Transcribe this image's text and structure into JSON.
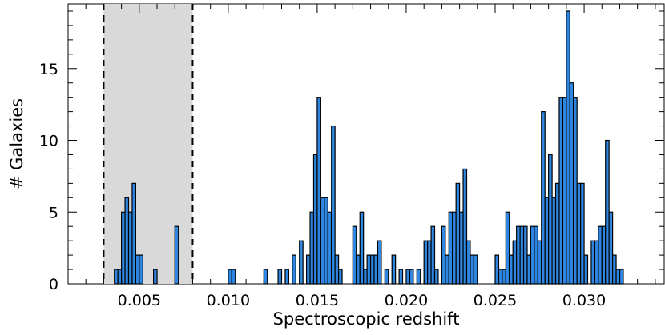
{
  "chart_data": {
    "type": "bar",
    "xlabel": "Spectroscopic redshift",
    "ylabel": "# Galaxies",
    "xlim": [
      0.0,
      0.035
    ],
    "ylim": [
      0,
      19.5
    ],
    "bin_width": 0.0002,
    "xticks": [
      0.005,
      0.01,
      0.015,
      0.02,
      0.025,
      0.03
    ],
    "xtick_labels": [
      "0.005",
      "0.010",
      "0.015",
      "0.020",
      "0.025",
      "0.030"
    ],
    "yticks": [
      0,
      5,
      10,
      15
    ],
    "ytick_labels": [
      "0",
      "5",
      "10",
      "15"
    ],
    "shaded_region": [
      0.003,
      0.008
    ],
    "colors": {
      "bar_fill": "#2f86e0",
      "bar_edge": "#000000",
      "shade": "#d9d9d9"
    },
    "bins": [
      {
        "x": 0.0037,
        "y": 1
      },
      {
        "x": 0.0039,
        "y": 1
      },
      {
        "x": 0.0041,
        "y": 5
      },
      {
        "x": 0.0043,
        "y": 6
      },
      {
        "x": 0.0045,
        "y": 5
      },
      {
        "x": 0.0047,
        "y": 7
      },
      {
        "x": 0.0049,
        "y": 2
      },
      {
        "x": 0.0051,
        "y": 2
      },
      {
        "x": 0.0059,
        "y": 1
      },
      {
        "x": 0.0071,
        "y": 4
      },
      {
        "x": 0.0101,
        "y": 1
      },
      {
        "x": 0.0103,
        "y": 1
      },
      {
        "x": 0.0121,
        "y": 1
      },
      {
        "x": 0.0129,
        "y": 1
      },
      {
        "x": 0.0133,
        "y": 1
      },
      {
        "x": 0.0137,
        "y": 2
      },
      {
        "x": 0.0141,
        "y": 3
      },
      {
        "x": 0.0145,
        "y": 2
      },
      {
        "x": 0.0147,
        "y": 5
      },
      {
        "x": 0.0149,
        "y": 9
      },
      {
        "x": 0.0151,
        "y": 13
      },
      {
        "x": 0.0153,
        "y": 6
      },
      {
        "x": 0.0155,
        "y": 6
      },
      {
        "x": 0.0157,
        "y": 5
      },
      {
        "x": 0.0159,
        "y": 11
      },
      {
        "x": 0.0161,
        "y": 2
      },
      {
        "x": 0.0163,
        "y": 1
      },
      {
        "x": 0.0171,
        "y": 4
      },
      {
        "x": 0.0173,
        "y": 2
      },
      {
        "x": 0.0175,
        "y": 5
      },
      {
        "x": 0.0177,
        "y": 1
      },
      {
        "x": 0.0179,
        "y": 2
      },
      {
        "x": 0.0181,
        "y": 2
      },
      {
        "x": 0.0183,
        "y": 2
      },
      {
        "x": 0.0185,
        "y": 3
      },
      {
        "x": 0.0189,
        "y": 1
      },
      {
        "x": 0.0193,
        "y": 2
      },
      {
        "x": 0.0197,
        "y": 1
      },
      {
        "x": 0.0201,
        "y": 1
      },
      {
        "x": 0.0203,
        "y": 1
      },
      {
        "x": 0.0207,
        "y": 1
      },
      {
        "x": 0.0211,
        "y": 3
      },
      {
        "x": 0.0213,
        "y": 3
      },
      {
        "x": 0.0215,
        "y": 4
      },
      {
        "x": 0.0217,
        "y": 1
      },
      {
        "x": 0.0221,
        "y": 4
      },
      {
        "x": 0.0223,
        "y": 2
      },
      {
        "x": 0.0225,
        "y": 5
      },
      {
        "x": 0.0227,
        "y": 5
      },
      {
        "x": 0.0229,
        "y": 7
      },
      {
        "x": 0.0231,
        "y": 5
      },
      {
        "x": 0.0233,
        "y": 8
      },
      {
        "x": 0.0235,
        "y": 3
      },
      {
        "x": 0.0237,
        "y": 2
      },
      {
        "x": 0.0239,
        "y": 2
      },
      {
        "x": 0.0251,
        "y": 2
      },
      {
        "x": 0.0253,
        "y": 1
      },
      {
        "x": 0.0255,
        "y": 1
      },
      {
        "x": 0.0257,
        "y": 5
      },
      {
        "x": 0.0259,
        "y": 2
      },
      {
        "x": 0.0261,
        "y": 3
      },
      {
        "x": 0.0263,
        "y": 4
      },
      {
        "x": 0.0265,
        "y": 4
      },
      {
        "x": 0.0267,
        "y": 4
      },
      {
        "x": 0.0269,
        "y": 2
      },
      {
        "x": 0.0271,
        "y": 4
      },
      {
        "x": 0.0273,
        "y": 4
      },
      {
        "x": 0.0275,
        "y": 3
      },
      {
        "x": 0.0277,
        "y": 12
      },
      {
        "x": 0.0279,
        "y": 6
      },
      {
        "x": 0.0281,
        "y": 9
      },
      {
        "x": 0.0283,
        "y": 6
      },
      {
        "x": 0.0285,
        "y": 7
      },
      {
        "x": 0.0287,
        "y": 13
      },
      {
        "x": 0.0289,
        "y": 13
      },
      {
        "x": 0.0291,
        "y": 19
      },
      {
        "x": 0.0293,
        "y": 14
      },
      {
        "x": 0.0295,
        "y": 13
      },
      {
        "x": 0.0297,
        "y": 7
      },
      {
        "x": 0.0299,
        "y": 7
      },
      {
        "x": 0.0301,
        "y": 2
      },
      {
        "x": 0.0305,
        "y": 3
      },
      {
        "x": 0.0307,
        "y": 3
      },
      {
        "x": 0.0309,
        "y": 4
      },
      {
        "x": 0.0311,
        "y": 4
      },
      {
        "x": 0.0313,
        "y": 10
      },
      {
        "x": 0.0315,
        "y": 5
      },
      {
        "x": 0.0317,
        "y": 2
      },
      {
        "x": 0.0319,
        "y": 1
      },
      {
        "x": 0.0321,
        "y": 1
      }
    ]
  }
}
